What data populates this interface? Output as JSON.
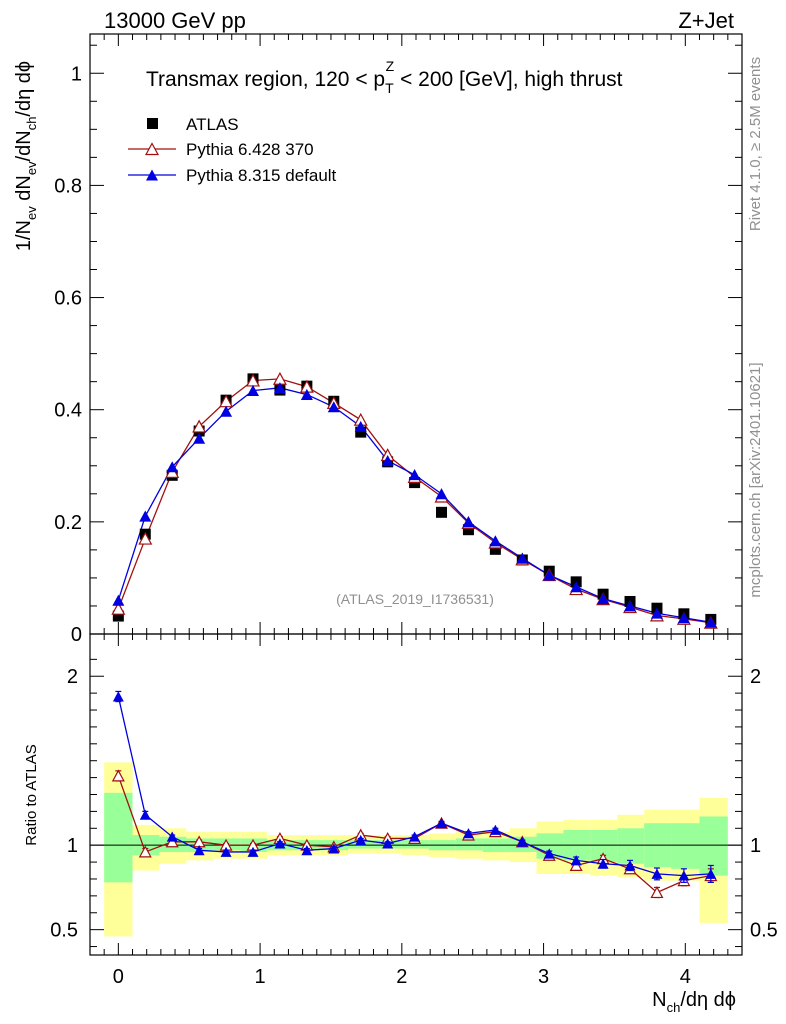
{
  "header": {
    "left": "13000 GeV pp",
    "right": "Z+Jet"
  },
  "side_text": {
    "rivet": "Rivet 4.1.0, ≥ 2.5M events",
    "mcplots": "mcplots.cern.ch [arXiv:2401.10621]"
  },
  "watermark": "(ATLAS_2019_I1736531)",
  "chart_data": {
    "type": "scatter",
    "title_parts": {
      "pre": "Transmax region, 120 < p",
      "sub": "T",
      "sup": "Z",
      "post": " < 200 [GeV], high thrust"
    },
    "ylabel_main": {
      "a": "1/N",
      "a_sub": "ev",
      "b": " dN",
      "b_sub": "ev",
      "c": "/dN",
      "c_sub": "ch",
      "d": "/dη dϕ"
    },
    "ylabel_ratio": "Ratio to ATLAS",
    "xlabel": {
      "main": "N",
      "sub": "ch",
      "rest": "/dη dϕ"
    },
    "xlim": [
      -0.2,
      4.4
    ],
    "ylim_main": [
      0,
      1.07
    ],
    "ylim_ratio": [
      0.35,
      2.25
    ],
    "xticks": [
      "0",
      "1",
      "2",
      "3",
      "4"
    ],
    "yticks_main": [
      "0",
      "0.2",
      "0.4",
      "0.6",
      "0.8",
      "1"
    ],
    "yticks_ratio": [
      "0.5",
      "1",
      "2"
    ],
    "legend": [
      {
        "name": "ATLAS",
        "color": "#000000",
        "marker": "square"
      },
      {
        "name": "Pythia 6.428 370",
        "color": "#a01010",
        "marker": "triangle-open"
      },
      {
        "name": "Pythia 8.315 default",
        "color": "#0000e0",
        "marker": "triangle"
      }
    ],
    "x": [
      0.0,
      0.19,
      0.38,
      0.57,
      0.76,
      0.95,
      1.14,
      1.33,
      1.52,
      1.71,
      1.9,
      2.09,
      2.28,
      2.47,
      2.66,
      2.85,
      3.04,
      3.23,
      3.42,
      3.61,
      3.8,
      3.99,
      4.18
    ],
    "series": [
      {
        "name": "ATLAS",
        "values": [
          0.032,
          0.178,
          0.283,
          0.362,
          0.417,
          0.455,
          0.435,
          0.442,
          0.415,
          0.36,
          0.307,
          0.27,
          0.217,
          0.186,
          0.151,
          0.132,
          0.112,
          0.093,
          0.071,
          0.058,
          0.046,
          0.036,
          0.026
        ]
      },
      {
        "name": "Pythia 6.428 370",
        "values": [
          0.045,
          0.17,
          0.289,
          0.37,
          0.415,
          0.452,
          0.455,
          0.441,
          0.412,
          0.382,
          0.319,
          0.28,
          0.245,
          0.198,
          0.163,
          0.133,
          0.105,
          0.08,
          0.062,
          0.048,
          0.033,
          0.027,
          0.02
        ]
      },
      {
        "name": "Pythia 8.315 default",
        "values": [
          0.06,
          0.21,
          0.298,
          0.349,
          0.397,
          0.434,
          0.439,
          0.427,
          0.405,
          0.37,
          0.309,
          0.284,
          0.25,
          0.2,
          0.166,
          0.135,
          0.105,
          0.084,
          0.063,
          0.05,
          0.037,
          0.029,
          0.021
        ]
      }
    ],
    "ratio_series": [
      {
        "name": "Pythia 6.428 370",
        "values": [
          1.41,
          0.96,
          1.02,
          1.02,
          1.0,
          1.0,
          1.04,
          1.0,
          0.99,
          1.06,
          1.04,
          1.04,
          1.13,
          1.06,
          1.08,
          1.02,
          0.94,
          0.88,
          0.92,
          0.86,
          0.72,
          0.79,
          0.82
        ],
        "errors": [
          0.03,
          0.02,
          0.01,
          0.01,
          0.01,
          0.01,
          0.01,
          0.01,
          0.01,
          0.01,
          0.01,
          0.01,
          0.01,
          0.01,
          0.01,
          0.01,
          0.01,
          0.015,
          0.02,
          0.025,
          0.03,
          0.03,
          0.04
        ]
      },
      {
        "name": "Pythia 8.315 default",
        "values": [
          1.88,
          1.18,
          1.05,
          0.97,
          0.96,
          0.96,
          1.01,
          0.97,
          0.98,
          1.03,
          1.01,
          1.05,
          1.13,
          1.07,
          1.09,
          1.02,
          0.95,
          0.91,
          0.89,
          0.88,
          0.83,
          0.82,
          0.83
        ],
        "errors": [
          0.03,
          0.02,
          0.01,
          0.01,
          0.01,
          0.01,
          0.01,
          0.01,
          0.01,
          0.01,
          0.01,
          0.01,
          0.01,
          0.01,
          0.01,
          0.01,
          0.015,
          0.02,
          0.025,
          0.03,
          0.035,
          0.04,
          0.05
        ]
      }
    ],
    "bands": {
      "edges": [
        -0.1,
        0.1,
        0.29,
        0.48,
        0.67,
        0.86,
        1.05,
        1.24,
        1.43,
        1.62,
        1.81,
        2.0,
        2.19,
        2.38,
        2.57,
        2.76,
        2.95,
        3.14,
        3.33,
        3.52,
        3.71,
        3.9,
        4.1,
        4.3
      ],
      "inner": [
        [
          0.78,
          1.31
        ],
        [
          0.94,
          1.06
        ],
        [
          0.96,
          1.05
        ],
        [
          0.96,
          1.04
        ],
        [
          0.97,
          1.04
        ],
        [
          0.96,
          1.04
        ],
        [
          0.97,
          1.03
        ],
        [
          0.97,
          1.03
        ],
        [
          0.97,
          1.03
        ],
        [
          0.98,
          1.03
        ],
        [
          0.98,
          1.03
        ],
        [
          0.98,
          1.03
        ],
        [
          0.97,
          1.03
        ],
        [
          0.97,
          1.04
        ],
        [
          0.96,
          1.04
        ],
        [
          0.96,
          1.05
        ],
        [
          0.92,
          1.07
        ],
        [
          0.91,
          1.09
        ],
        [
          0.9,
          1.09
        ],
        [
          0.89,
          1.1
        ],
        [
          0.87,
          1.13
        ],
        [
          0.86,
          1.13
        ],
        [
          0.82,
          1.17
        ]
      ],
      "outer": [
        [
          0.46,
          1.49
        ],
        [
          0.85,
          1.12
        ],
        [
          0.89,
          1.1
        ],
        [
          0.91,
          1.08
        ],
        [
          0.92,
          1.08
        ],
        [
          0.92,
          1.08
        ],
        [
          0.94,
          1.06
        ],
        [
          0.94,
          1.06
        ],
        [
          0.94,
          1.06
        ],
        [
          0.95,
          1.06
        ],
        [
          0.95,
          1.06
        ],
        [
          0.94,
          1.06
        ],
        [
          0.93,
          1.07
        ],
        [
          0.92,
          1.08
        ],
        [
          0.91,
          1.08
        ],
        [
          0.9,
          1.1
        ],
        [
          0.83,
          1.14
        ],
        [
          0.83,
          1.15
        ],
        [
          0.82,
          1.15
        ],
        [
          0.81,
          1.18
        ],
        [
          0.79,
          1.21
        ],
        [
          0.79,
          1.21
        ],
        [
          0.54,
          1.28
        ]
      ]
    }
  }
}
